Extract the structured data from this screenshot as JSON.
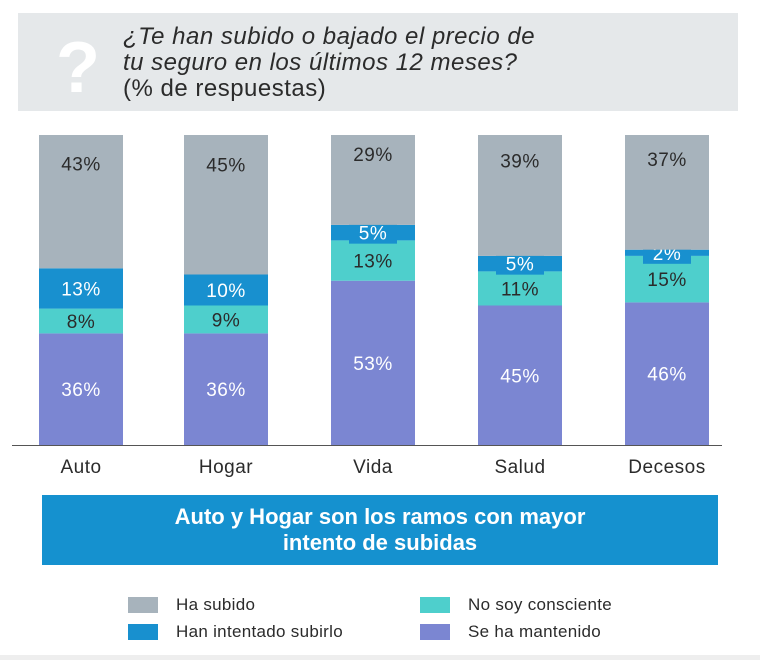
{
  "question": {
    "line1": "¿Te han subido o bajado el precio de",
    "line2": "tu seguro en los últimos 12 meses?",
    "line3": "(% de respuestas)",
    "icon": "question-mark-icon"
  },
  "banner": {
    "line1": "Auto y Hogar son los ramos con mayor",
    "line2": "intento de subidas"
  },
  "colors": {
    "ha_subido": "#a7b3bc",
    "han_intentado": "#1890cf",
    "no_consciente": "#4ecfcc",
    "mantenido": "#7b86d2",
    "header_bg": "#e5e8ea",
    "banner_bg": "#1591cf"
  },
  "legend": [
    {
      "label": "Ha subido",
      "color": "#a7b3bc"
    },
    {
      "label": "No soy consciente",
      "color": "#4ecfcc"
    },
    {
      "label": "Han intentado subirlo",
      "color": "#1890cf"
    },
    {
      "label": "Se ha mantenido",
      "color": "#7b86d2"
    }
  ],
  "chart_data": {
    "type": "bar",
    "stacked": true,
    "categories": [
      "Auto",
      "Hogar",
      "Vida",
      "Salud",
      "Decesos"
    ],
    "series": [
      {
        "name": "Se ha mantenido",
        "values": [
          36,
          36,
          53,
          45,
          46
        ],
        "labels": [
          "36%",
          "36%",
          "53%",
          "45%",
          "46%"
        ]
      },
      {
        "name": "No soy consciente",
        "values": [
          8,
          9,
          13,
          11,
          15
        ],
        "labels": [
          "8%",
          "9%",
          "13%",
          "11%",
          "15%"
        ]
      },
      {
        "name": "Han intentado subirlo",
        "values": [
          13,
          10,
          5,
          5,
          2
        ],
        "labels": [
          "13%",
          "10%",
          "5%",
          "5%",
          "2%"
        ]
      },
      {
        "name": "Ha subido",
        "values": [
          43,
          45,
          29,
          39,
          37
        ],
        "labels": [
          "43%",
          "45%",
          "29%",
          "39%",
          "37%"
        ]
      }
    ],
    "ylim": [
      0,
      100
    ],
    "legend_position": "bottom",
    "grid": false
  }
}
